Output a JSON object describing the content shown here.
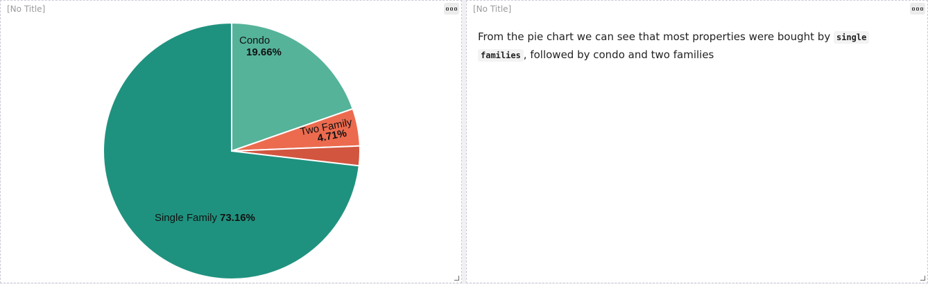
{
  "left_panel": {
    "title": "[No Title]"
  },
  "right_panel": {
    "title": "[No Title]",
    "text_before": "From the pie chart we can see that most properties were bought by ",
    "code_word_1": "single",
    "code_word_2": "families",
    "text_after": ", followed by condo and two families"
  },
  "chart_data": {
    "type": "pie",
    "slices": [
      {
        "label": "Condo",
        "percent_label": "19.66%",
        "value": 19.66,
        "color": "#55b39a"
      },
      {
        "label": "Two Family",
        "percent_label": "4.71%",
        "value": 4.71,
        "color": "#ec6b4f"
      },
      {
        "label": "",
        "percent_label": "",
        "value": 2.47,
        "color": "#d2553f"
      },
      {
        "label": "Single Family",
        "percent_label": "73.16%",
        "value": 73.16,
        "color": "#1f927f"
      }
    ]
  }
}
